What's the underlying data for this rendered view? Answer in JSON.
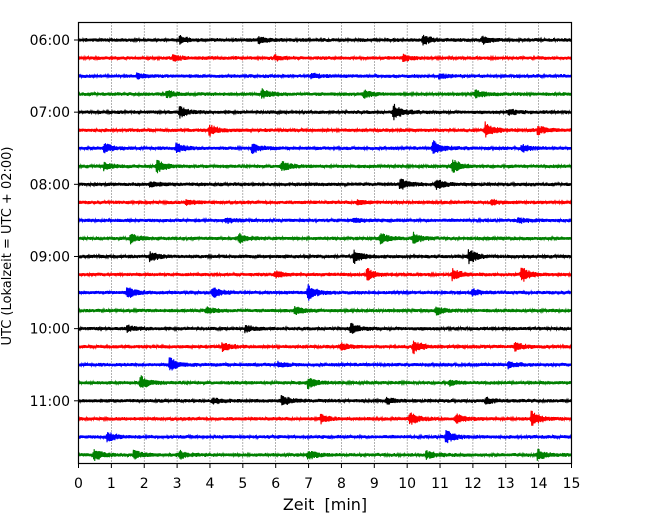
{
  "chart_data": {
    "type": "line",
    "title": "",
    "xlabel": "Zeit  [min]",
    "ylabel": "UTC (Lokalzeit = UTC + 02:00)",
    "xlim": [
      0,
      15
    ],
    "x_ticks": [
      "0",
      "1",
      "2",
      "3",
      "4",
      "5",
      "6",
      "7",
      "8",
      "9",
      "10",
      "11",
      "12",
      "13",
      "14",
      "15"
    ],
    "y_ticks": [
      "06:00",
      "07:00",
      "08:00",
      "09:00",
      "10:00",
      "11:00"
    ],
    "grid": "vertical dotted",
    "trace_colors": [
      "#000000",
      "#ff0000",
      "#0000ff",
      "#008000"
    ],
    "traces": [
      {
        "start": "06:00",
        "color": "#000000",
        "events": [
          [
            3.1,
            0.5
          ],
          [
            5.5,
            0.4
          ],
          [
            10.5,
            0.6
          ],
          [
            12.3,
            0.5
          ]
        ]
      },
      {
        "start": "06:15",
        "color": "#ff0000",
        "events": [
          [
            2.9,
            0.4
          ],
          [
            6.0,
            0.3
          ],
          [
            9.9,
            0.4
          ]
        ]
      },
      {
        "start": "06:30",
        "color": "#0000ff",
        "events": [
          [
            1.8,
            0.3
          ],
          [
            7.1,
            0.3
          ],
          [
            11.0,
            0.3
          ]
        ]
      },
      {
        "start": "06:45",
        "color": "#008000",
        "events": [
          [
            2.7,
            0.5
          ],
          [
            5.6,
            0.6
          ],
          [
            8.7,
            0.5
          ],
          [
            12.1,
            0.5
          ]
        ]
      },
      {
        "start": "07:00",
        "color": "#000000",
        "events": [
          [
            3.1,
            0.7
          ],
          [
            9.6,
            1.0
          ],
          [
            13.1,
            0.4
          ]
        ]
      },
      {
        "start": "07:15",
        "color": "#ff0000",
        "events": [
          [
            4.0,
            0.7
          ],
          [
            12.4,
            1.0
          ],
          [
            14.0,
            0.5
          ]
        ]
      },
      {
        "start": "07:30",
        "color": "#0000ff",
        "events": [
          [
            0.8,
            0.6
          ],
          [
            3.0,
            0.6
          ],
          [
            5.3,
            0.6
          ],
          [
            10.8,
            1.0
          ],
          [
            13.5,
            0.5
          ]
        ]
      },
      {
        "start": "07:45",
        "color": "#008000",
        "events": [
          [
            0.8,
            0.5
          ],
          [
            2.4,
            0.8
          ],
          [
            6.2,
            0.6
          ],
          [
            11.4,
            0.9
          ]
        ]
      },
      {
        "start": "08:00",
        "color": "#000000",
        "events": [
          [
            2.2,
            0.3
          ],
          [
            9.8,
            0.8
          ],
          [
            10.9,
            0.7
          ]
        ]
      },
      {
        "start": "08:15",
        "color": "#ff0000",
        "events": [
          [
            3.3,
            0.3
          ],
          [
            8.5,
            0.3
          ],
          [
            12.6,
            0.3
          ]
        ]
      },
      {
        "start": "08:30",
        "color": "#0000ff",
        "events": [
          [
            4.5,
            0.3
          ],
          [
            8.4,
            0.3
          ],
          [
            13.4,
            0.3
          ]
        ]
      },
      {
        "start": "08:45",
        "color": "#008000",
        "events": [
          [
            1.6,
            0.6
          ],
          [
            4.9,
            0.6
          ],
          [
            9.2,
            0.7
          ],
          [
            10.2,
            0.7
          ]
        ]
      },
      {
        "start": "09:00",
        "color": "#000000",
        "events": [
          [
            2.2,
            0.6
          ],
          [
            8.4,
            0.8
          ],
          [
            11.9,
            0.9
          ]
        ]
      },
      {
        "start": "09:15",
        "color": "#ff0000",
        "events": [
          [
            6.0,
            0.4
          ],
          [
            8.8,
            0.8
          ],
          [
            11.4,
            0.8
          ],
          [
            13.5,
            1.0
          ]
        ]
      },
      {
        "start": "09:30",
        "color": "#0000ff",
        "events": [
          [
            1.5,
            0.7
          ],
          [
            4.1,
            0.7
          ],
          [
            7.0,
            1.0
          ],
          [
            12.0,
            0.4
          ]
        ]
      },
      {
        "start": "09:45",
        "color": "#008000",
        "events": [
          [
            3.9,
            0.4
          ],
          [
            6.6,
            0.5
          ],
          [
            10.9,
            0.5
          ]
        ]
      },
      {
        "start": "10:00",
        "color": "#000000",
        "events": [
          [
            1.5,
            0.4
          ],
          [
            5.1,
            0.4
          ],
          [
            8.3,
            0.6
          ]
        ]
      },
      {
        "start": "10:15",
        "color": "#ff0000",
        "events": [
          [
            4.4,
            0.5
          ],
          [
            8.0,
            0.4
          ],
          [
            10.2,
            0.9
          ],
          [
            13.3,
            0.6
          ]
        ]
      },
      {
        "start": "10:30",
        "color": "#0000ff",
        "events": [
          [
            2.8,
            0.9
          ],
          [
            6.1,
            0.3
          ],
          [
            13.1,
            0.4
          ]
        ]
      },
      {
        "start": "10:45",
        "color": "#008000",
        "events": [
          [
            1.9,
            0.9
          ],
          [
            7.0,
            0.7
          ],
          [
            11.3,
            0.3
          ]
        ]
      },
      {
        "start": "11:00",
        "color": "#000000",
        "events": [
          [
            4.1,
            0.4
          ],
          [
            6.2,
            0.7
          ],
          [
            9.4,
            0.4
          ],
          [
            12.4,
            0.4
          ]
        ]
      },
      {
        "start": "11:15",
        "color": "#ff0000",
        "events": [
          [
            7.4,
            0.6
          ],
          [
            10.1,
            0.8
          ],
          [
            11.5,
            0.6
          ],
          [
            13.8,
            1.0
          ]
        ]
      },
      {
        "start": "11:30",
        "color": "#0000ff",
        "events": [
          [
            0.9,
            0.6
          ],
          [
            11.2,
            0.8
          ]
        ]
      },
      {
        "start": "11:45",
        "color": "#008000",
        "events": [
          [
            0.5,
            0.7
          ],
          [
            1.7,
            0.6
          ],
          [
            3.1,
            0.5
          ],
          [
            7.0,
            0.6
          ],
          [
            10.6,
            0.5
          ],
          [
            14.0,
            0.7
          ]
        ]
      }
    ]
  }
}
